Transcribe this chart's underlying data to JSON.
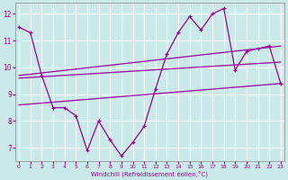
{
  "xlabel": "Windchill (Refroidissement éolien,°C)",
  "background_color": "#caeaea",
  "grid_color": "#ffffff",
  "line_color": "#990099",
  "x_values": [
    0,
    1,
    2,
    3,
    4,
    5,
    6,
    7,
    8,
    9,
    10,
    11,
    12,
    13,
    14,
    15,
    16,
    17,
    18,
    19,
    20,
    21,
    22,
    23
  ],
  "y_main": [
    11.5,
    11.3,
    9.7,
    8.5,
    8.5,
    8.2,
    6.9,
    8.0,
    7.3,
    6.7,
    7.2,
    7.8,
    9.2,
    10.5,
    11.3,
    11.9,
    11.4,
    12.0,
    12.2,
    9.9,
    10.6,
    10.7,
    10.8,
    9.4
  ],
  "trend_upper_y0": 9.7,
  "trend_upper_y1": 10.8,
  "trend_mid_y0": 9.6,
  "trend_mid_y1": 10.2,
  "trend_lower_y0": 8.6,
  "trend_lower_y1": 9.4,
  "ylim": [
    6.5,
    12.4
  ],
  "xlim": [
    0,
    23
  ],
  "yticks": [
    7,
    8,
    9,
    10,
    11,
    12
  ],
  "xticks": [
    0,
    1,
    2,
    3,
    4,
    5,
    6,
    7,
    8,
    9,
    10,
    11,
    12,
    13,
    14,
    15,
    16,
    17,
    18,
    19,
    20,
    21,
    22,
    23
  ]
}
